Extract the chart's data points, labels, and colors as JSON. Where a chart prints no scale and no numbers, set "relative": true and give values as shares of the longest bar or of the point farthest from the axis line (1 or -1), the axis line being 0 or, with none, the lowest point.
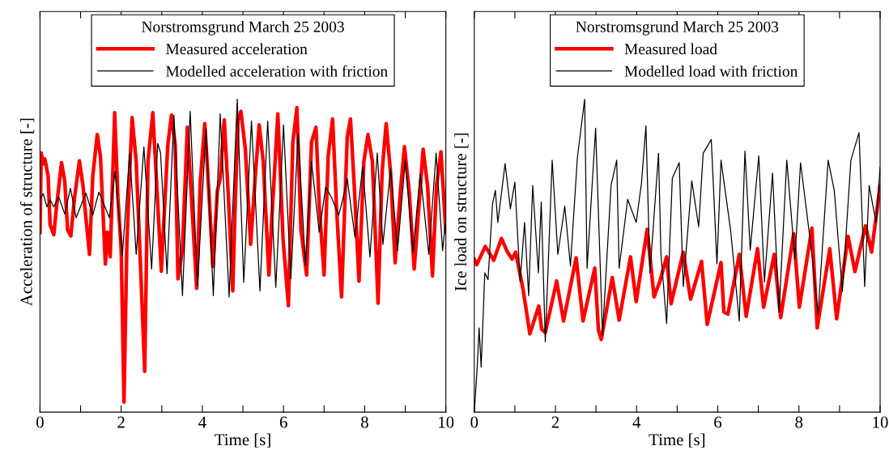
{
  "chart_data": [
    {
      "type": "line",
      "xlabel": "Time [s]",
      "ylabel": "Acceleration of structure [-]",
      "legend_title": "Norstromsgrund March 25 2003",
      "relative": true,
      "legend": "top",
      "grid": false,
      "tick_labels": "x",
      "marker": "none",
      "line_style": "solid",
      "xlim": [
        0,
        10
      ],
      "xticks": [
        0,
        {
          "value": 1,
          "label": null
        },
        2,
        {
          "value": 3,
          "label": null
        },
        4,
        {
          "value": 5,
          "label": null
        },
        6,
        {
          "value": 7,
          "label": null
        },
        8,
        {
          "value": 9,
          "label": null
        },
        10
      ],
      "series": [
        {
          "name": "Measured acceleration",
          "color": "#ff0000",
          "x": [
            0,
            0.03,
            0.08,
            0.12,
            0.2,
            0.25,
            0.34,
            0.41,
            0.53,
            0.61,
            0.68,
            0.76,
            0.85,
            0.97,
            1.06,
            1.13,
            1.22,
            1.3,
            1.41,
            1.49,
            1.61,
            1.66,
            1.73,
            1.84,
            1.92,
            2.0,
            2.07,
            2.14,
            2.21,
            2.27,
            2.37,
            2.48,
            2.58,
            2.66,
            2.78,
            2.89,
            2.99,
            3.09,
            3.15,
            3.24,
            3.33,
            3.4,
            3.51,
            3.63,
            3.75,
            3.86,
            3.95,
            4.06,
            4.16,
            4.26,
            4.37,
            4.44,
            4.54,
            4.64,
            4.75,
            4.81,
            4.88,
            4.95,
            5.06,
            5.19,
            5.3,
            5.4,
            5.5,
            5.64,
            5.71,
            5.86,
            5.99,
            6.12,
            6.23,
            6.33,
            6.43,
            6.57,
            6.69,
            6.8,
            6.88,
            7.0,
            7.1,
            7.21,
            7.31,
            7.43,
            7.57,
            7.65,
            7.74,
            7.86,
            7.98,
            8.08,
            8.19,
            8.33,
            8.43,
            8.53,
            8.64,
            8.75,
            8.88,
            8.98,
            9.1,
            9.22,
            9.32,
            9.44,
            9.55,
            9.67,
            9.77,
            9.88,
            10.0
          ],
          "values": [
            0.574,
            0.828,
            0.793,
            0.809,
            0.754,
            0.598,
            0.567,
            0.66,
            0.797,
            0.738,
            0.582,
            0.563,
            0.684,
            0.803,
            0.723,
            0.621,
            0.504,
            0.754,
            0.887,
            0.817,
            0.473,
            0.575,
            0.496,
            0.957,
            0.684,
            0.52,
            0.032,
            0.536,
            0.77,
            0.941,
            0.801,
            0.457,
            0.13,
            0.801,
            0.957,
            0.692,
            0.45,
            0.707,
            0.856,
            0.949,
            0.856,
            0.426,
            0.52,
            0.91,
            0.645,
            0.395,
            0.738,
            0.922,
            0.707,
            0.465,
            0.707,
            0.746,
            0.934,
            0.692,
            0.387,
            0.668,
            0.934,
            0.961,
            0.84,
            0.536,
            0.746,
            0.918,
            0.801,
            0.438,
            0.614,
            0.953,
            0.551,
            0.34,
            0.863,
            0.973,
            0.582,
            0.438,
            0.863,
            0.91,
            0.66,
            0.438,
            0.817,
            0.937,
            0.645,
            0.368,
            0.879,
            0.937,
            0.731,
            0.418,
            0.801,
            0.887,
            0.801,
            0.348,
            0.77,
            0.922,
            0.762,
            0.477,
            0.707,
            0.848,
            0.7,
            0.457,
            0.629,
            0.84,
            0.723,
            0.435,
            0.723,
            0.832,
            0.575
          ]
        },
        {
          "name": "Modelled acceleration with friction",
          "color": "#000000",
          "x": [
            0,
            0.08,
            0.17,
            0.25,
            0.34,
            0.46,
            0.61,
            0.75,
            0.89,
            1.13,
            1.3,
            1.45,
            1.71,
            1.85,
            2.03,
            2.21,
            2.37,
            2.56,
            2.75,
            2.9,
            2.97,
            3.13,
            3.3,
            3.51,
            3.7,
            3.88,
            4.09,
            4.27,
            4.44,
            4.66,
            4.86,
            5.02,
            5.21,
            5.42,
            5.61,
            5.81,
            6.0,
            6.18,
            6.36,
            6.54,
            6.69,
            6.88,
            7.04,
            7.19,
            7.36,
            7.46,
            7.57,
            7.76,
            7.95,
            8.13,
            8.31,
            8.45,
            8.64,
            8.81,
            9.0,
            9.19,
            9.37,
            9.58,
            9.76,
            9.92,
            10.0
          ],
          "values": [
            0.68,
            0.698,
            0.656,
            0.678,
            0.656,
            0.688,
            0.633,
            0.715,
            0.621,
            0.7,
            0.629,
            0.703,
            0.621,
            0.77,
            0.5,
            0.828,
            0.504,
            0.848,
            0.457,
            0.859,
            0.828,
            0.442,
            0.949,
            0.372,
            0.961,
            0.403,
            0.906,
            0.372,
            0.953,
            0.368,
            1.0,
            0.415,
            0.93,
            0.387,
            0.93,
            0.399,
            0.918,
            0.426,
            0.891,
            0.469,
            0.801,
            0.575,
            0.719,
            0.684,
            0.629,
            0.68,
            0.746,
            0.559,
            0.785,
            0.496,
            0.828,
            0.536,
            0.778,
            0.516,
            0.805,
            0.512,
            0.762,
            0.504,
            0.828,
            0.516,
            0.618
          ]
        }
      ]
    },
    {
      "type": "line",
      "xlabel": "Time [s]",
      "ylabel": "Ice load on structure [-]",
      "legend_title": "Norstromsgrund March 25 2003",
      "relative": true,
      "legend": "top",
      "grid": false,
      "tick_labels": "x",
      "marker": "none",
      "line_style": "solid",
      "xlim": [
        0,
        10
      ],
      "xticks": [
        0,
        {
          "value": 1,
          "label": null
        },
        2,
        {
          "value": 3,
          "label": null
        },
        4,
        {
          "value": 5,
          "label": null
        },
        6,
        {
          "value": 7,
          "label": null
        },
        8,
        {
          "value": 9,
          "label": null
        },
        10
      ],
      "series": [
        {
          "name": "Measured load",
          "color": "#ff0000",
          "x": [
            0,
            0.06,
            0.27,
            0.36,
            0.48,
            0.67,
            0.82,
            0.93,
            1.02,
            1.2,
            1.37,
            1.59,
            1.66,
            1.75,
            2.03,
            2.2,
            2.51,
            2.68,
            2.97,
            3.06,
            3.13,
            3.4,
            3.57,
            3.85,
            3.99,
            4.26,
            4.43,
            4.57,
            4.74,
            4.85,
            5.15,
            5.33,
            5.6,
            5.74,
            6.08,
            6.15,
            6.25,
            6.53,
            6.7,
            6.98,
            7.13,
            7.39,
            7.55,
            7.87,
            8.01,
            8.32,
            8.45,
            8.76,
            8.93,
            9.21,
            9.38,
            9.64,
            9.79,
            10.0
          ],
          "values": [
            0.489,
            0.471,
            0.529,
            0.511,
            0.485,
            0.555,
            0.511,
            0.489,
            0.511,
            0.394,
            0.25,
            0.339,
            0.265,
            0.254,
            0.419,
            0.291,
            0.493,
            0.291,
            0.46,
            0.261,
            0.232,
            0.43,
            0.294,
            0.496,
            0.353,
            0.584,
            0.368,
            0.416,
            0.496,
            0.346,
            0.511,
            0.361,
            0.482,
            0.28,
            0.478,
            0.32,
            0.313,
            0.504,
            0.306,
            0.522,
            0.335,
            0.504,
            0.302,
            0.57,
            0.335,
            0.588,
            0.269,
            0.522,
            0.298,
            0.562,
            0.449,
            0.595,
            0.511,
            0.724
          ]
        },
        {
          "name": "Modelled load with friction",
          "color": "#000000",
          "x": [
            0,
            0.07,
            0.12,
            0.17,
            0.26,
            0.34,
            0.45,
            0.52,
            0.58,
            0.76,
            0.89,
            1.0,
            1.13,
            1.24,
            1.34,
            1.44,
            1.58,
            1.65,
            1.75,
            1.92,
            2.06,
            2.23,
            2.37,
            2.54,
            2.72,
            2.78,
            2.99,
            3.16,
            3.37,
            3.51,
            3.57,
            3.78,
            3.99,
            4.12,
            4.23,
            4.33,
            4.54,
            4.6,
            4.74,
            4.88,
            5.05,
            5.15,
            5.36,
            5.53,
            5.64,
            5.84,
            5.98,
            6.08,
            6.32,
            6.53,
            6.67,
            6.8,
            7.01,
            7.15,
            7.35,
            7.51,
            7.7,
            7.9,
            8.04,
            8.32,
            8.47,
            8.72,
            8.87,
            9.07,
            9.28,
            9.48,
            9.62,
            9.73,
            9.9,
            10.0
          ],
          "values": [
            0.0,
            0.137,
            0.269,
            0.144,
            0.445,
            0.423,
            0.665,
            0.709,
            0.606,
            0.794,
            0.65,
            0.735,
            0.416,
            0.606,
            0.372,
            0.724,
            0.445,
            0.672,
            0.225,
            0.805,
            0.504,
            0.658,
            0.467,
            0.812,
            1.0,
            0.46,
            0.907,
            0.247,
            0.724,
            0.805,
            0.46,
            0.68,
            0.606,
            0.731,
            0.915,
            0.445,
            0.827,
            0.504,
            0.283,
            0.748,
            0.797,
            0.401,
            0.739,
            0.592,
            0.827,
            0.871,
            0.474,
            0.805,
            0.577,
            0.291,
            0.834,
            0.518,
            0.819,
            0.416,
            0.764,
            0.32,
            0.805,
            0.489,
            0.797,
            0.504,
            0.313,
            0.805,
            0.709,
            0.386,
            0.805,
            0.893,
            0.401,
            0.724,
            0.606,
            0.783
          ]
        }
      ]
    }
  ]
}
